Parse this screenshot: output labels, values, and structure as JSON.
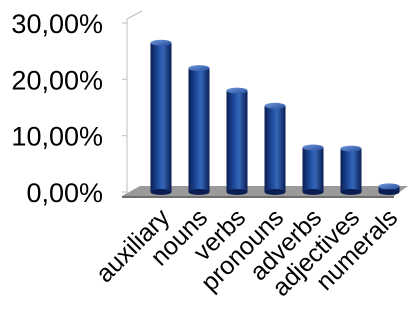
{
  "chart_data": {
    "type": "bar",
    "categories": [
      "auxiliary",
      "nouns",
      "verbs",
      "pronouns",
      "adverbs",
      "adjectives",
      "numerals"
    ],
    "values": [
      26.5,
      22.0,
      18.0,
      15.3,
      7.9,
      7.7,
      1.0
    ],
    "y_ticks": [
      "0,00%",
      "10,00%",
      "20,00%",
      "30,00%"
    ],
    "ylim": [
      0,
      30
    ],
    "value_format": "percent",
    "grid": false,
    "legend": "none",
    "bar_style": "3d-cylinder",
    "colors": {
      "bar_dark": "#0b1e52",
      "bar_mid": "#1e4a9c",
      "bar_light": "#5d8ad6",
      "floor": "#9a9a9a",
      "axis": "#bfbfbf"
    }
  }
}
